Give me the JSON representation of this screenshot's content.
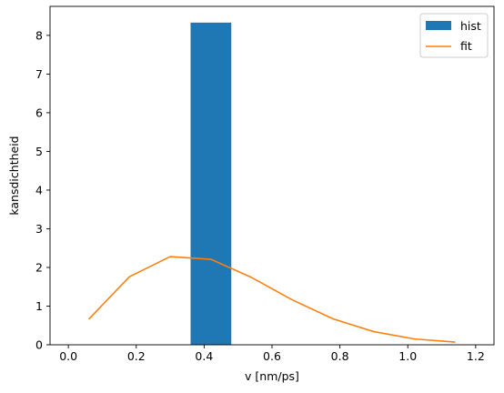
{
  "chart_data": {
    "type": "bar",
    "title": "",
    "xlabel": "v [nm/ps]",
    "ylabel": "kansdichtheid",
    "xlim": [
      -0.054,
      1.254
    ],
    "ylim": [
      0,
      8.75
    ],
    "xticks": [
      "0.0",
      "0.2",
      "0.4",
      "0.6",
      "0.8",
      "1.0",
      "1.2"
    ],
    "xtick_values": [
      0.0,
      0.2,
      0.4,
      0.6,
      0.8,
      1.0,
      1.2
    ],
    "yticks": [
      "0",
      "1",
      "2",
      "3",
      "4",
      "5",
      "6",
      "7",
      "8"
    ],
    "ytick_values": [
      0,
      1,
      2,
      3,
      4,
      5,
      6,
      7,
      8
    ],
    "grid": false,
    "legend_position": "top-right",
    "series": [
      {
        "name": "hist",
        "kind": "bar",
        "color": "#1f77b4",
        "bars": [
          {
            "x_start": 0.36,
            "x_end": 0.48,
            "value": 8.33
          }
        ]
      },
      {
        "name": "fit",
        "kind": "line",
        "color": "#ff7f0e",
        "x": [
          0.06,
          0.18,
          0.3,
          0.42,
          0.54,
          0.66,
          0.78,
          0.9,
          1.02,
          1.14
        ],
        "y": [
          0.66,
          1.76,
          2.28,
          2.21,
          1.74,
          1.16,
          0.67,
          0.34,
          0.15,
          0.07
        ]
      }
    ]
  }
}
